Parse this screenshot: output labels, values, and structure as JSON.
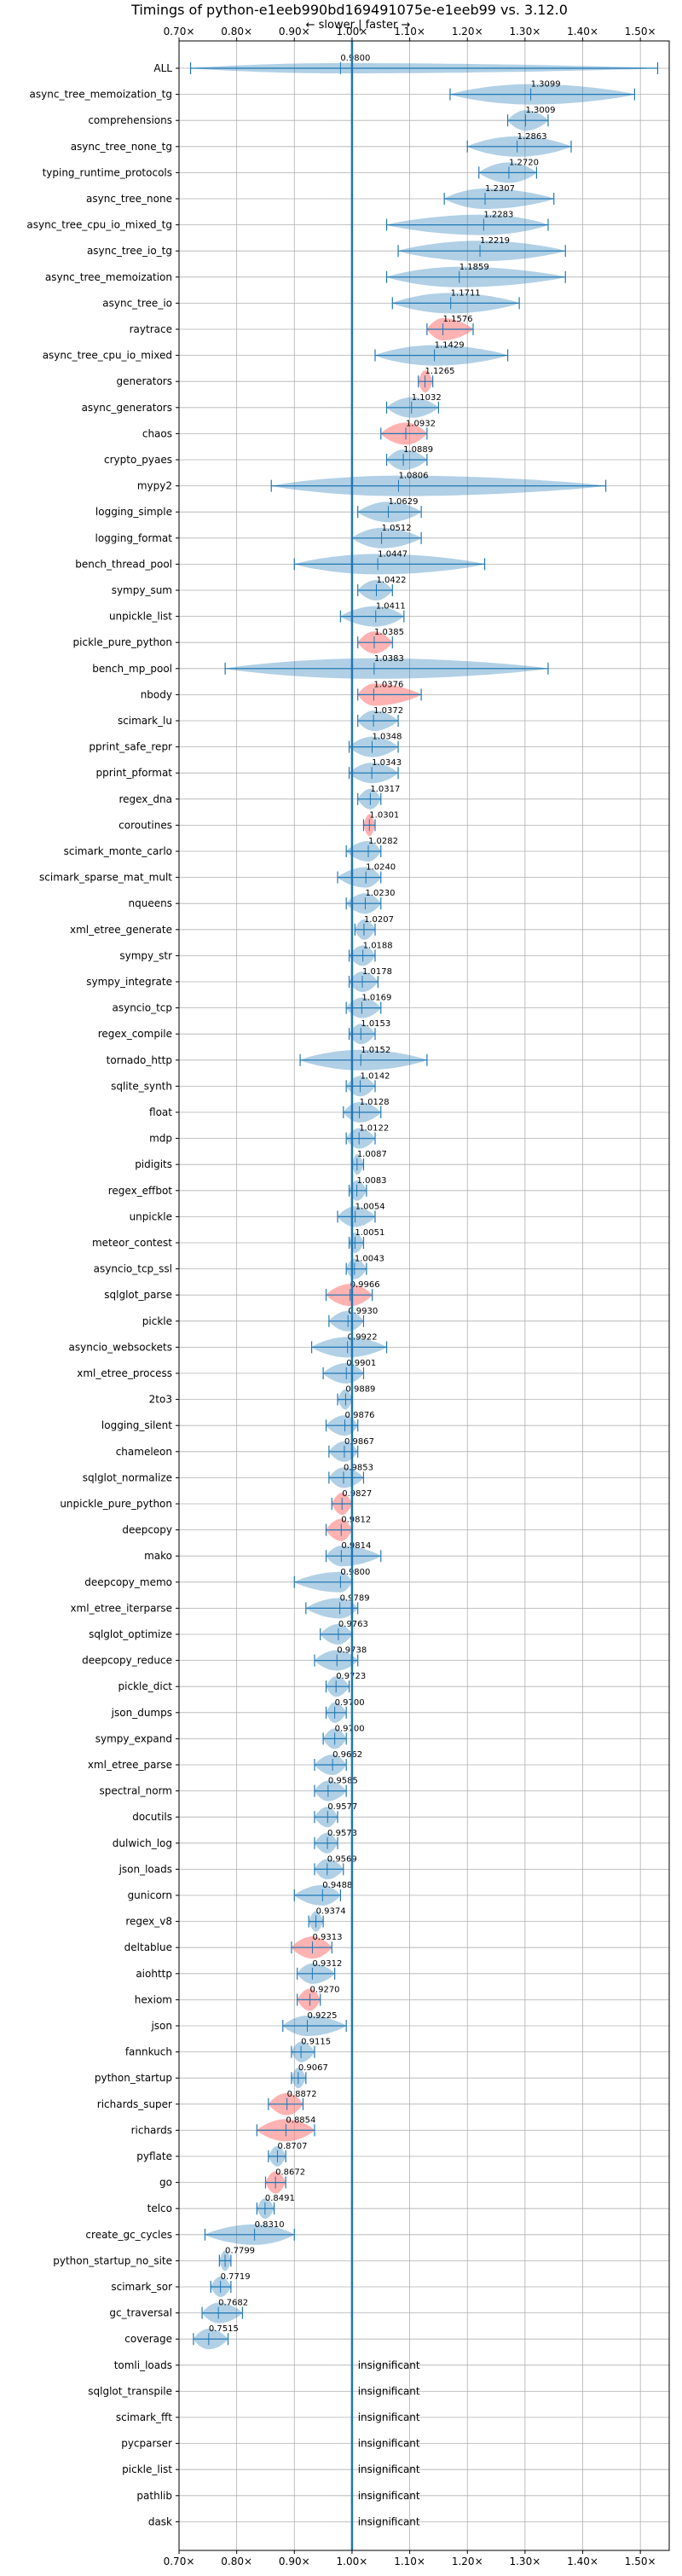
{
  "chart_data": {
    "type": "violin",
    "title": "Timings of python-e1eeb990bd169491075e-e1eeb99 vs. 3.12.0",
    "direction_label": "← slower | faster →",
    "xlim": [
      0.7,
      1.55
    ],
    "xticks": [
      0.7,
      0.8,
      0.9,
      1.0,
      1.1,
      1.2,
      1.3,
      1.4,
      1.5
    ],
    "xtick_labels": [
      "0.70×",
      "0.80×",
      "0.90×",
      "1.00×",
      "1.10×",
      "1.20×",
      "1.30×",
      "1.40×",
      "1.50×"
    ],
    "reference_x": 1.0,
    "grid": true,
    "colors": {
      "normal": "#1f77b4",
      "highlight": "#ff7f7f",
      "line": "#1f77b4"
    },
    "insignificant_text": "insignificant",
    "benchmarks": [
      {
        "name": "ALL",
        "label": "0.9800",
        "median": 0.98,
        "min": 0.72,
        "max": 1.53,
        "w": 0.35
      },
      {
        "name": "async_tree_memoization_tg",
        "label": "1.3099",
        "median": 1.3099,
        "min": 1.17,
        "max": 1.49
      },
      {
        "name": "comprehensions",
        "label": "1.3009",
        "median": 1.3009,
        "min": 1.27,
        "max": 1.34
      },
      {
        "name": "async_tree_none_tg",
        "label": "1.2863",
        "median": 1.2863,
        "min": 1.2,
        "max": 1.38
      },
      {
        "name": "typing_runtime_protocols",
        "label": "1.2720",
        "median": 1.272,
        "min": 1.22,
        "max": 1.32
      },
      {
        "name": "async_tree_none",
        "label": "1.2307",
        "median": 1.2307,
        "min": 1.16,
        "max": 1.35
      },
      {
        "name": "async_tree_cpu_io_mixed_tg",
        "label": "1.2283",
        "median": 1.2283,
        "min": 1.06,
        "max": 1.34
      },
      {
        "name": "async_tree_io_tg",
        "label": "1.2219",
        "median": 1.2219,
        "min": 1.08,
        "max": 1.37
      },
      {
        "name": "async_tree_memoization",
        "label": "1.1859",
        "median": 1.1859,
        "min": 1.06,
        "max": 1.37
      },
      {
        "name": "async_tree_io",
        "label": "1.1711",
        "median": 1.1711,
        "min": 1.07,
        "max": 1.29
      },
      {
        "name": "raytrace",
        "label": "1.1576",
        "median": 1.1576,
        "min": 1.13,
        "max": 1.21,
        "hl": true
      },
      {
        "name": "async_tree_cpu_io_mixed",
        "label": "1.1429",
        "median": 1.1429,
        "min": 1.04,
        "max": 1.27
      },
      {
        "name": "generators",
        "label": "1.1265",
        "median": 1.1265,
        "min": 1.115,
        "max": 1.14,
        "hl": true
      },
      {
        "name": "async_generators",
        "label": "1.1032",
        "median": 1.1032,
        "min": 1.06,
        "max": 1.15
      },
      {
        "name": "chaos",
        "label": "1.0932",
        "median": 1.0932,
        "min": 1.05,
        "max": 1.13,
        "hl": true
      },
      {
        "name": "crypto_pyaes",
        "label": "1.0889",
        "median": 1.0889,
        "min": 1.06,
        "max": 1.13
      },
      {
        "name": "mypy2",
        "label": "1.0806",
        "median": 1.0806,
        "min": 0.86,
        "max": 1.44
      },
      {
        "name": "logging_simple",
        "label": "1.0629",
        "median": 1.0629,
        "min": 1.01,
        "max": 1.12
      },
      {
        "name": "logging_format",
        "label": "1.0512",
        "median": 1.0512,
        "min": 1.0,
        "max": 1.12
      },
      {
        "name": "bench_thread_pool",
        "label": "1.0447",
        "median": 1.0447,
        "min": 0.9,
        "max": 1.23
      },
      {
        "name": "sympy_sum",
        "label": "1.0422",
        "median": 1.0422,
        "min": 1.01,
        "max": 1.07
      },
      {
        "name": "unpickle_list",
        "label": "1.0411",
        "median": 1.0411,
        "min": 0.98,
        "max": 1.09
      },
      {
        "name": "pickle_pure_python",
        "label": "1.0385",
        "median": 1.0385,
        "min": 1.01,
        "max": 1.07,
        "hl": true
      },
      {
        "name": "bench_mp_pool",
        "label": "1.0383",
        "median": 1.0383,
        "min": 0.78,
        "max": 1.34
      },
      {
        "name": "nbody",
        "label": "1.0376",
        "median": 1.0376,
        "min": 1.01,
        "max": 1.12,
        "hl": true
      },
      {
        "name": "scimark_lu",
        "label": "1.0372",
        "median": 1.0372,
        "min": 1.01,
        "max": 1.08
      },
      {
        "name": "pprint_safe_repr",
        "label": "1.0348",
        "median": 1.0348,
        "min": 0.995,
        "max": 1.08
      },
      {
        "name": "pprint_pformat",
        "label": "1.0343",
        "median": 1.0343,
        "min": 0.995,
        "max": 1.08
      },
      {
        "name": "regex_dna",
        "label": "1.0317",
        "median": 1.0317,
        "min": 1.01,
        "max": 1.05
      },
      {
        "name": "coroutines",
        "label": "1.0301",
        "median": 1.0301,
        "min": 1.02,
        "max": 1.04,
        "hl": true
      },
      {
        "name": "scimark_monte_carlo",
        "label": "1.0282",
        "median": 1.0282,
        "min": 0.99,
        "max": 1.05
      },
      {
        "name": "scimark_sparse_mat_mult",
        "label": "1.0240",
        "median": 1.024,
        "min": 0.975,
        "max": 1.05
      },
      {
        "name": "nqueens",
        "label": "1.0230",
        "median": 1.023,
        "min": 0.99,
        "max": 1.05
      },
      {
        "name": "xml_etree_generate",
        "label": "1.0207",
        "median": 1.0207,
        "min": 1.005,
        "max": 1.04
      },
      {
        "name": "sympy_str",
        "label": "1.0188",
        "median": 1.0188,
        "min": 0.995,
        "max": 1.04
      },
      {
        "name": "sympy_integrate",
        "label": "1.0178",
        "median": 1.0178,
        "min": 0.995,
        "max": 1.045
      },
      {
        "name": "asyncio_tcp",
        "label": "1.0169",
        "median": 1.0169,
        "min": 0.99,
        "max": 1.05
      },
      {
        "name": "regex_compile",
        "label": "1.0153",
        "median": 1.0153,
        "min": 0.995,
        "max": 1.04
      },
      {
        "name": "tornado_http",
        "label": "1.0152",
        "median": 1.0152,
        "min": 0.91,
        "max": 1.13
      },
      {
        "name": "sqlite_synth",
        "label": "1.0142",
        "median": 1.0142,
        "min": 0.99,
        "max": 1.04
      },
      {
        "name": "float",
        "label": "1.0128",
        "median": 1.0128,
        "min": 0.985,
        "max": 1.05
      },
      {
        "name": "mdp",
        "label": "1.0122",
        "median": 1.0122,
        "min": 0.99,
        "max": 1.04
      },
      {
        "name": "pidigits",
        "label": "1.0087",
        "median": 1.0087,
        "min": 1.0,
        "max": 1.02
      },
      {
        "name": "regex_effbot",
        "label": "1.0083",
        "median": 1.0083,
        "min": 0.995,
        "max": 1.025
      },
      {
        "name": "unpickle",
        "label": "1.0054",
        "median": 1.0054,
        "min": 0.975,
        "max": 1.04
      },
      {
        "name": "meteor_contest",
        "label": "1.0051",
        "median": 1.0051,
        "min": 0.995,
        "max": 1.02
      },
      {
        "name": "asyncio_tcp_ssl",
        "label": "1.0043",
        "median": 1.0043,
        "min": 0.99,
        "max": 1.025
      },
      {
        "name": "sqlglot_parse",
        "label": "0.9966",
        "median": 0.9966,
        "min": 0.955,
        "max": 1.035,
        "hl": true
      },
      {
        "name": "pickle",
        "label": "0.9930",
        "median": 0.993,
        "min": 0.96,
        "max": 1.02
      },
      {
        "name": "asyncio_websockets",
        "label": "0.9922",
        "median": 0.9922,
        "min": 0.93,
        "max": 1.06
      },
      {
        "name": "xml_etree_process",
        "label": "0.9901",
        "median": 0.9901,
        "min": 0.95,
        "max": 1.02
      },
      {
        "name": "2to3",
        "label": "0.9889",
        "median": 0.9889,
        "min": 0.975,
        "max": 1.0
      },
      {
        "name": "logging_silent",
        "label": "0.9876",
        "median": 0.9876,
        "min": 0.955,
        "max": 1.01
      },
      {
        "name": "chameleon",
        "label": "0.9867",
        "median": 0.9867,
        "min": 0.96,
        "max": 1.01
      },
      {
        "name": "sqlglot_normalize",
        "label": "0.9853",
        "median": 0.9853,
        "min": 0.96,
        "max": 1.02
      },
      {
        "name": "unpickle_pure_python",
        "label": "0.9827",
        "median": 0.9827,
        "min": 0.965,
        "max": 1.0,
        "hl": true
      },
      {
        "name": "deepcopy",
        "label": "0.9812",
        "median": 0.9812,
        "min": 0.955,
        "max": 1.0,
        "hl": true
      },
      {
        "name": "mako",
        "label": "0.9814",
        "median": 0.9814,
        "min": 0.955,
        "max": 1.05
      },
      {
        "name": "deepcopy_memo",
        "label": "0.9800",
        "median": 0.98,
        "min": 0.9,
        "max": 1.0
      },
      {
        "name": "xml_etree_iterparse",
        "label": "0.9789",
        "median": 0.9789,
        "min": 0.92,
        "max": 1.01
      },
      {
        "name": "sqlglot_optimize",
        "label": "0.9763",
        "median": 0.9763,
        "min": 0.945,
        "max": 1.0
      },
      {
        "name": "deepcopy_reduce",
        "label": "0.9738",
        "median": 0.9738,
        "min": 0.935,
        "max": 1.01
      },
      {
        "name": "pickle_dict",
        "label": "0.9723",
        "median": 0.9723,
        "min": 0.955,
        "max": 0.995
      },
      {
        "name": "json_dumps",
        "label": "0.9700",
        "median": 0.97,
        "min": 0.955,
        "max": 0.99
      },
      {
        "name": "sympy_expand",
        "label": "0.9700",
        "median": 0.97,
        "min": 0.95,
        "max": 0.99
      },
      {
        "name": "xml_etree_parse",
        "label": "0.9662",
        "median": 0.9662,
        "min": 0.935,
        "max": 0.99
      },
      {
        "name": "spectral_norm",
        "label": "0.9585",
        "median": 0.9585,
        "min": 0.935,
        "max": 0.99
      },
      {
        "name": "docutils",
        "label": "0.9577",
        "median": 0.9577,
        "min": 0.935,
        "max": 0.975
      },
      {
        "name": "dulwich_log",
        "label": "0.9573",
        "median": 0.9573,
        "min": 0.935,
        "max": 0.975
      },
      {
        "name": "json_loads",
        "label": "0.9569",
        "median": 0.9569,
        "min": 0.935,
        "max": 0.985
      },
      {
        "name": "gunicorn",
        "label": "0.9488",
        "median": 0.9488,
        "min": 0.9,
        "max": 0.98
      },
      {
        "name": "regex_v8",
        "label": "0.9374",
        "median": 0.9374,
        "min": 0.925,
        "max": 0.95
      },
      {
        "name": "deltablue",
        "label": "0.9313",
        "median": 0.9313,
        "min": 0.895,
        "max": 0.965,
        "hl": true
      },
      {
        "name": "aiohttp",
        "label": "0.9312",
        "median": 0.9312,
        "min": 0.905,
        "max": 0.97
      },
      {
        "name": "hexiom",
        "label": "0.9270",
        "median": 0.927,
        "min": 0.905,
        "max": 0.945,
        "hl": true
      },
      {
        "name": "json",
        "label": "0.9225",
        "median": 0.9225,
        "min": 0.88,
        "max": 0.99
      },
      {
        "name": "fannkuch",
        "label": "0.9115",
        "median": 0.9115,
        "min": 0.895,
        "max": 0.935
      },
      {
        "name": "python_startup",
        "label": "0.9067",
        "median": 0.9067,
        "min": 0.895,
        "max": 0.92
      },
      {
        "name": "richards_super",
        "label": "0.8872",
        "median": 0.8872,
        "min": 0.855,
        "max": 0.915,
        "hl": true
      },
      {
        "name": "richards",
        "label": "0.8854",
        "median": 0.8854,
        "min": 0.835,
        "max": 0.935,
        "hl": true
      },
      {
        "name": "pyflate",
        "label": "0.8707",
        "median": 0.8707,
        "min": 0.855,
        "max": 0.885
      },
      {
        "name": "go",
        "label": "0.8672",
        "median": 0.8672,
        "min": 0.85,
        "max": 0.885,
        "hl": true
      },
      {
        "name": "telco",
        "label": "0.8491",
        "median": 0.8491,
        "min": 0.835,
        "max": 0.865
      },
      {
        "name": "create_gc_cycles",
        "label": "0.8310",
        "median": 0.831,
        "min": 0.745,
        "max": 0.9
      },
      {
        "name": "python_startup_no_site",
        "label": "0.7799",
        "median": 0.7799,
        "min": 0.77,
        "max": 0.79
      },
      {
        "name": "scimark_sor",
        "label": "0.7719",
        "median": 0.7719,
        "min": 0.755,
        "max": 0.79
      },
      {
        "name": "gc_traversal",
        "label": "0.7682",
        "median": 0.7682,
        "min": 0.74,
        "max": 0.81
      },
      {
        "name": "coverage",
        "label": "0.7515",
        "median": 0.7515,
        "min": 0.725,
        "max": 0.785
      },
      {
        "name": "tomli_loads",
        "insig": true
      },
      {
        "name": "sqlglot_transpile",
        "insig": true
      },
      {
        "name": "scimark_fft",
        "insig": true
      },
      {
        "name": "pycparser",
        "insig": true
      },
      {
        "name": "pickle_list",
        "insig": true
      },
      {
        "name": "pathlib",
        "insig": true
      },
      {
        "name": "dask",
        "insig": true
      }
    ]
  }
}
